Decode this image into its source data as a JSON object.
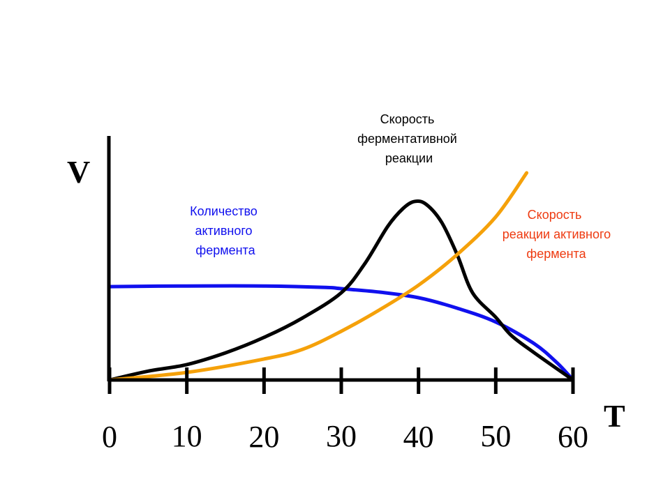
{
  "chart_data": {
    "type": "line",
    "xlabel": "T",
    "ylabel": "V",
    "xlim": [
      0,
      60
    ],
    "ylim": [
      0,
      100
    ],
    "x_ticks": [
      0,
      10,
      20,
      30,
      40,
      50,
      60
    ],
    "x_tick_labels": [
      "0",
      "10",
      "20",
      "30",
      "40",
      "50",
      "60"
    ],
    "grid": false,
    "legend": "none",
    "series": [
      {
        "name": "Количество активного фермента",
        "color": "#1010ee",
        "points": [
          [
            0,
            45.4
          ],
          [
            10,
            45.7
          ],
          [
            20,
            45.7
          ],
          [
            28,
            45.0
          ],
          [
            30,
            44.4
          ],
          [
            35,
            42.7
          ],
          [
            40,
            40.0
          ],
          [
            45,
            34.9
          ],
          [
            50,
            28.2
          ],
          [
            55,
            17.6
          ],
          [
            58,
            8.1
          ],
          [
            60,
            0
          ]
        ]
      },
      {
        "name": "Скорость ферментативной реакции",
        "color": "#000000",
        "points": [
          [
            0,
            0
          ],
          [
            5,
            4.3
          ],
          [
            10,
            7.5
          ],
          [
            15,
            13.2
          ],
          [
            20,
            20.7
          ],
          [
            25,
            30.2
          ],
          [
            30,
            42.4
          ],
          [
            33,
            56.3
          ],
          [
            36,
            74.6
          ],
          [
            38,
            83.4
          ],
          [
            39.5,
            86.8
          ],
          [
            41,
            85.4
          ],
          [
            43,
            76.6
          ],
          [
            45,
            61.0
          ],
          [
            47,
            42.4
          ],
          [
            50,
            30.5
          ],
          [
            52,
            21.7
          ],
          [
            55,
            13.2
          ],
          [
            60,
            0
          ]
        ]
      },
      {
        "name": "Скорость реакции активного фермента",
        "color": "#f5a10a",
        "points": [
          [
            0,
            0
          ],
          [
            10,
            3.7
          ],
          [
            20,
            10.2
          ],
          [
            25,
            14.9
          ],
          [
            30,
            23.7
          ],
          [
            35,
            34.2
          ],
          [
            40,
            46.1
          ],
          [
            45,
            61.0
          ],
          [
            50,
            79.3
          ],
          [
            54,
            100.7
          ]
        ]
      }
    ],
    "annotations": [
      {
        "text": [
          "Скорость",
          "ферментативной",
          "реакции"
        ],
        "color": "#000000",
        "series": "Скорость ферментативной реакции"
      },
      {
        "text": [
          "Количество",
          "активного",
          "фермента"
        ],
        "color": "#1010ee",
        "series": "Количество активного фермента"
      },
      {
        "text": [
          "Скорость",
          "реакции активного",
          "фермента"
        ],
        "color": "#ee3a10",
        "series": "Скорость реакции активного фермента"
      }
    ]
  }
}
